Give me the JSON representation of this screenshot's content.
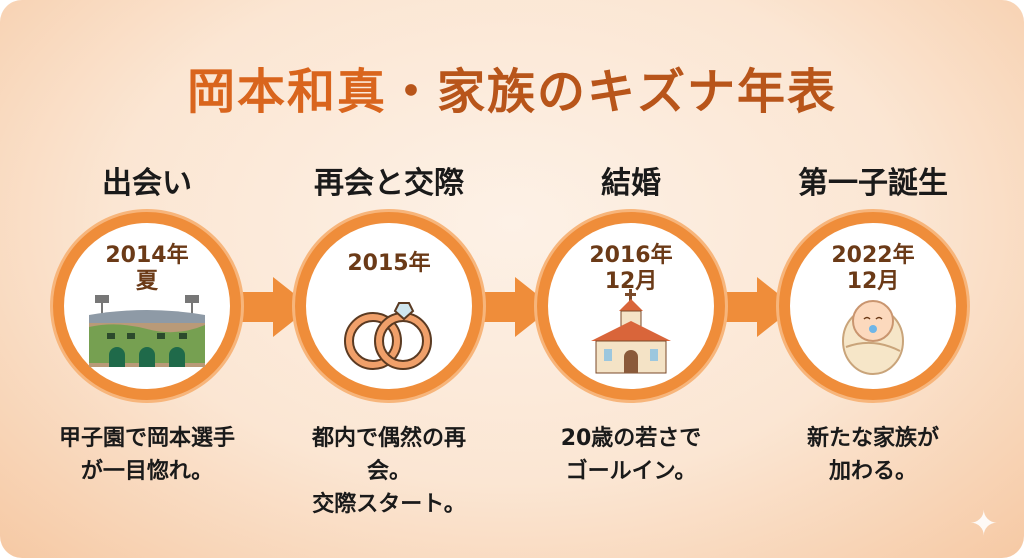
{
  "title": {
    "part1": "岡本和真",
    "part2": "・家族のキズナ年表"
  },
  "steps": [
    {
      "heading": "出会い",
      "date": "2014年\n夏",
      "icon": "stadium-icon",
      "desc": "甲子園で岡本選手\nが一目惚れ。"
    },
    {
      "heading": "再会と交際",
      "date": "2015年",
      "icon": "rings-icon",
      "desc": "都内で偶然の再\n会。\n交際スタート。"
    },
    {
      "heading": "結婚",
      "date": "2016年\n12月",
      "icon": "church-icon",
      "desc": "20歳の若さで\nゴールイン。"
    },
    {
      "heading": "第一子誕生",
      "date": "2022年\n12月",
      "icon": "baby-icon",
      "desc": "新たな家族が\n加わる。"
    }
  ],
  "colors": {
    "accent": "#ef8d3a",
    "date_text": "#6b3a17",
    "title_orange": "#d9651d"
  }
}
